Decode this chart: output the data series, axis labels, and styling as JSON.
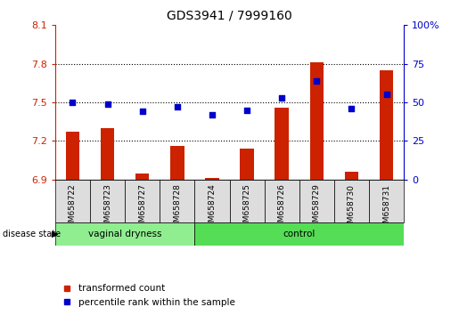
{
  "title": "GDS3941 / 7999160",
  "samples": [
    "GSM658722",
    "GSM658723",
    "GSM658727",
    "GSM658728",
    "GSM658724",
    "GSM658725",
    "GSM658726",
    "GSM658729",
    "GSM658730",
    "GSM658731"
  ],
  "groups": [
    "vaginal dryness",
    "vaginal dryness",
    "vaginal dryness",
    "vaginal dryness",
    "control",
    "control",
    "control",
    "control",
    "control",
    "control"
  ],
  "red_values": [
    7.27,
    7.3,
    6.95,
    7.16,
    6.91,
    7.14,
    7.46,
    7.81,
    6.96,
    7.75
  ],
  "blue_values": [
    50,
    49,
    44,
    47,
    42,
    45,
    53,
    64,
    46,
    55
  ],
  "ylim_left": [
    6.9,
    8.1
  ],
  "ylim_right": [
    0,
    100
  ],
  "yticks_left": [
    6.9,
    7.2,
    7.5,
    7.8,
    8.1
  ],
  "yticks_right": [
    0,
    25,
    50,
    75,
    100
  ],
  "ytick_labels_left": [
    "6.9",
    "7.2",
    "7.5",
    "7.8",
    "8.1"
  ],
  "ytick_labels_right": [
    "0",
    "25",
    "50",
    "75",
    "100%"
  ],
  "hlines": [
    7.2,
    7.5,
    7.8
  ],
  "bar_color": "#CC2200",
  "dot_color": "#0000CC",
  "bar_bottom": 6.9,
  "legend_items": [
    "transformed count",
    "percentile rank within the sample"
  ],
  "vd_color": "#90EE90",
  "ctrl_color": "#55DD55",
  "label_bg": "#DDDDDD"
}
